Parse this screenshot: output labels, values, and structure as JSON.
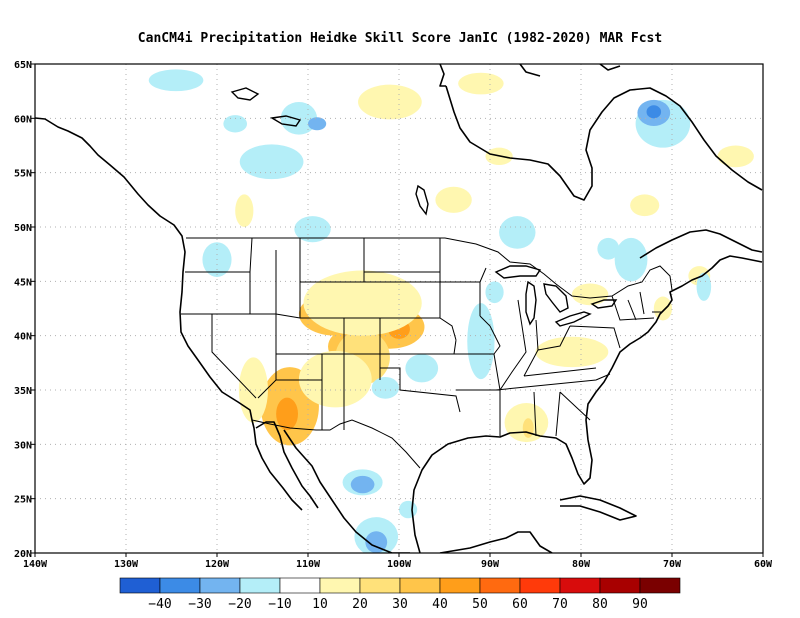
{
  "title": "CanCM4i  Precipitation Heidke Skill Score JanIC (1982-2020) MAR Fcst",
  "map": {
    "lon_range": [
      -140,
      -60
    ],
    "lat_range": [
      20,
      65
    ],
    "lat_ticks": [
      "20N",
      "25N",
      "30N",
      "35N",
      "40N",
      "45N",
      "50N",
      "55N",
      "60N",
      "65N"
    ],
    "lon_ticks": [
      "140W",
      "130W",
      "120W",
      "110W",
      "100W",
      "90W",
      "80W",
      "70W",
      "60W"
    ],
    "gridlines": true
  },
  "colorbar": {
    "colors": [
      "#1f5fd4",
      "#3c8be6",
      "#73b4f0",
      "#b4eef8",
      "#ffffff",
      "#fff7b0",
      "#ffe17a",
      "#ffc54a",
      "#ff9e1a",
      "#ff6a10",
      "#ff3a0a",
      "#d80c0c",
      "#a80000",
      "#7a0000"
    ],
    "labels": [
      "−40",
      "−30",
      "−20",
      "−10",
      "10",
      "20",
      "30",
      "40",
      "50",
      "60",
      "70",
      "80",
      "90"
    ]
  },
  "field_regions": [
    {
      "category": "30",
      "color": "#ffc54a",
      "lon": -112,
      "lat": 33.5,
      "rx": 3.2,
      "ry": 3.6
    },
    {
      "category": "40",
      "color": "#ff9e1a",
      "lon": -112.3,
      "lat": 32.8,
      "rx": 1.2,
      "ry": 1.5
    },
    {
      "category": "30",
      "color": "#ffc54a",
      "lon": -101,
      "lat": 40.8,
      "rx": 3.8,
      "ry": 2.0
    },
    {
      "category": "40",
      "color": "#ff9e1a",
      "lon": -100,
      "lat": 40.6,
      "rx": 1.2,
      "ry": 0.9
    },
    {
      "category": "30",
      "color": "#ffc54a",
      "lon": -107,
      "lat": 42,
      "rx": 4.0,
      "ry": 2.0
    },
    {
      "category": "30",
      "color": "#ffc54a",
      "lon": -106,
      "lat": 39,
      "rx": 1.8,
      "ry": 1.4
    },
    {
      "category": "20",
      "color": "#ffe17a",
      "lon": -104,
      "lat": 38,
      "rx": 3.0,
      "ry": 2.5
    },
    {
      "category": "10",
      "color": "#fff7b0",
      "lon": -104,
      "lat": 43,
      "rx": 6.5,
      "ry": 3.0
    },
    {
      "category": "10",
      "color": "#fff7b0",
      "lon": -107,
      "lat": 36,
      "rx": 4.0,
      "ry": 2.6
    },
    {
      "category": "10",
      "color": "#fff7b0",
      "lon": -116,
      "lat": 35,
      "rx": 1.6,
      "ry": 3.0
    },
    {
      "category": "10",
      "color": "#fff7b0",
      "lon": -86,
      "lat": 32,
      "rx": 2.4,
      "ry": 1.8
    },
    {
      "category": "20",
      "color": "#ffe17a",
      "lon": -85.8,
      "lat": 31.5,
      "rx": 0.6,
      "ry": 0.9
    },
    {
      "category": "10",
      "color": "#fff7b0",
      "lon": -81,
      "lat": 38.5,
      "rx": 4.0,
      "ry": 1.4
    },
    {
      "category": "10",
      "color": "#fff7b0",
      "lon": -79,
      "lat": 43.8,
      "rx": 2.0,
      "ry": 1.0
    },
    {
      "category": "10",
      "color": "#fff7b0",
      "lon": -71,
      "lat": 42.5,
      "rx": 1.0,
      "ry": 1.1
    },
    {
      "category": "10",
      "color": "#fff7b0",
      "lon": -67,
      "lat": 45.5,
      "rx": 1.2,
      "ry": 0.9
    },
    {
      "category": "10",
      "color": "#fff7b0",
      "lon": -94,
      "lat": 52.5,
      "rx": 2.0,
      "ry": 1.2
    },
    {
      "category": "10",
      "color": "#fff7b0",
      "lon": -89,
      "lat": 56.5,
      "rx": 1.5,
      "ry": 0.8
    },
    {
      "category": "10",
      "color": "#fff7b0",
      "lon": -101,
      "lat": 61.5,
      "rx": 3.5,
      "ry": 1.6
    },
    {
      "category": "10",
      "color": "#fff7b0",
      "lon": -91,
      "lat": 63.2,
      "rx": 2.5,
      "ry": 1.0
    },
    {
      "category": "10",
      "color": "#fff7b0",
      "lon": -73,
      "lat": 52,
      "rx": 1.6,
      "ry": 1.0
    },
    {
      "category": "10",
      "color": "#fff7b0",
      "lon": -63,
      "lat": 56.5,
      "rx": 2.0,
      "ry": 1.0
    },
    {
      "category": "10",
      "color": "#fff7b0",
      "lon": -117,
      "lat": 51.5,
      "rx": 1.0,
      "ry": 1.5
    },
    {
      "category": "-10",
      "color": "#b4eef8",
      "lon": -114,
      "lat": 56,
      "rx": 3.5,
      "ry": 1.6
    },
    {
      "category": "-10",
      "color": "#b4eef8",
      "lon": -124.5,
      "lat": 63.5,
      "rx": 3.0,
      "ry": 1.0
    },
    {
      "category": "-10",
      "color": "#b4eef8",
      "lon": -111,
      "lat": 60,
      "rx": 2.0,
      "ry": 1.5
    },
    {
      "category": "-20",
      "color": "#73b4f0",
      "lon": -109,
      "lat": 59.5,
      "rx": 1.0,
      "ry": 0.6
    },
    {
      "category": "-10",
      "color": "#b4eef8",
      "lon": -118,
      "lat": 59.5,
      "rx": 1.3,
      "ry": 0.8
    },
    {
      "category": "-10",
      "color": "#b4eef8",
      "lon": -109.5,
      "lat": 49.8,
      "rx": 2.0,
      "ry": 1.2
    },
    {
      "category": "-10",
      "color": "#b4eef8",
      "lon": -120,
      "lat": 47,
      "rx": 1.6,
      "ry": 1.6
    },
    {
      "category": "-10",
      "color": "#b4eef8",
      "lon": -87,
      "lat": 49.5,
      "rx": 2.0,
      "ry": 1.5
    },
    {
      "category": "-10",
      "color": "#b4eef8",
      "lon": -74.5,
      "lat": 47,
      "rx": 1.8,
      "ry": 2.0
    },
    {
      "category": "-10",
      "color": "#b4eef8",
      "lon": -71,
      "lat": 59.5,
      "rx": 3.0,
      "ry": 2.2
    },
    {
      "category": "-20",
      "color": "#73b4f0",
      "lon": -72,
      "lat": 60.5,
      "rx": 1.8,
      "ry": 1.2
    },
    {
      "category": "-30",
      "color": "#3c8be6",
      "lon": -72,
      "lat": 60.6,
      "rx": 0.8,
      "ry": 0.6
    },
    {
      "category": "-10",
      "color": "#b4eef8",
      "lon": -77,
      "lat": 48,
      "rx": 1.2,
      "ry": 1.0
    },
    {
      "category": "-10",
      "color": "#b4eef8",
      "lon": -91,
      "lat": 39.5,
      "rx": 1.5,
      "ry": 3.5
    },
    {
      "category": "-10",
      "color": "#b4eef8",
      "lon": -97.5,
      "lat": 37,
      "rx": 1.8,
      "ry": 1.3
    },
    {
      "category": "-10",
      "color": "#b4eef8",
      "lon": -101.5,
      "lat": 35.2,
      "rx": 1.5,
      "ry": 1.0
    },
    {
      "category": "-10",
      "color": "#b4eef8",
      "lon": -89.5,
      "lat": 44,
      "rx": 1.0,
      "ry": 1.0
    },
    {
      "category": "-10",
      "color": "#b4eef8",
      "lon": -104,
      "lat": 26.5,
      "rx": 2.2,
      "ry": 1.2
    },
    {
      "category": "-20",
      "color": "#73b4f0",
      "lon": -104,
      "lat": 26.3,
      "rx": 1.3,
      "ry": 0.8
    },
    {
      "category": "-10",
      "color": "#b4eef8",
      "lon": -102.5,
      "lat": 21.5,
      "rx": 2.4,
      "ry": 1.8
    },
    {
      "category": "-20",
      "color": "#73b4f0",
      "lon": -102.5,
      "lat": 21.0,
      "rx": 1.2,
      "ry": 1.0
    },
    {
      "category": "-10",
      "color": "#b4eef8",
      "lon": -99,
      "lat": 24,
      "rx": 1.0,
      "ry": 0.8
    },
    {
      "category": "-10",
      "color": "#b4eef8",
      "lon": -66.5,
      "lat": 44.5,
      "rx": 0.8,
      "ry": 1.3
    }
  ]
}
